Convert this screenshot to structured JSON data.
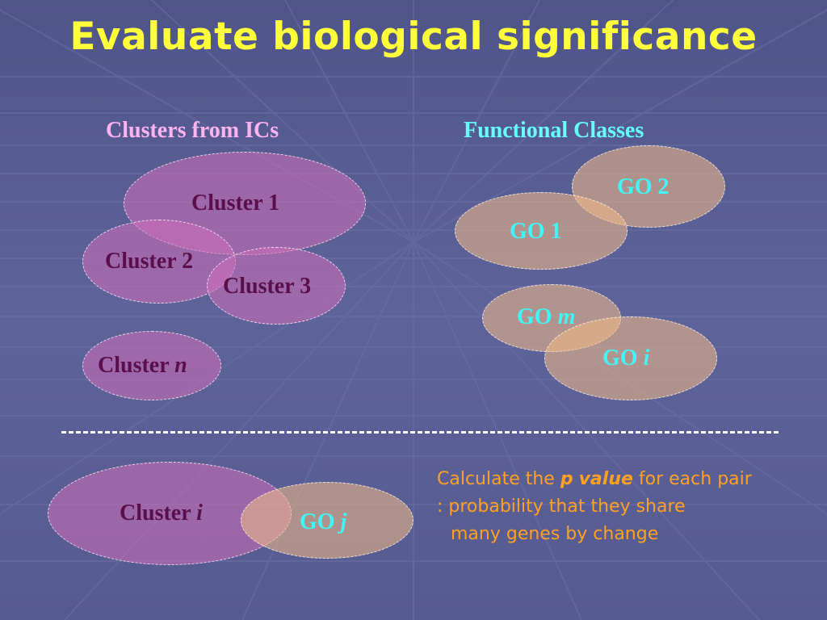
{
  "title": "Evaluate biological significance",
  "headings": {
    "clusters": "Clusters from ICs",
    "functional": "Functional Classes"
  },
  "clusters": {
    "c1": "Cluster 1",
    "c2": "Cluster 2",
    "c3": "Cluster 3",
    "cn_prefix": "Cluster",
    "cn_var": "n"
  },
  "go": {
    "g1": "GO 1",
    "g2": "GO 2",
    "gm_prefix": "GO",
    "gm_var": "m",
    "gi_prefix": "GO",
    "gi_var": "i"
  },
  "pair": {
    "cluster_prefix": "Cluster",
    "cluster_var": "i",
    "go_prefix": "GO",
    "go_var": "j"
  },
  "calc": {
    "line1_pre": "Calculate the ",
    "line1_p": "p",
    "line1_value": "value",
    "line1_post": " for each pair",
    "line2": ": probability that they share",
    "line3": "many genes by change"
  },
  "colors": {
    "background": "#5a5f92",
    "title": "#ffff3a",
    "cluster_heading": "#ffb3f0",
    "functional_heading": "#66ffff",
    "cluster_text": "#5a0f4a",
    "go_text": "#3ff5f5",
    "calc_text": "#ffa022"
  }
}
